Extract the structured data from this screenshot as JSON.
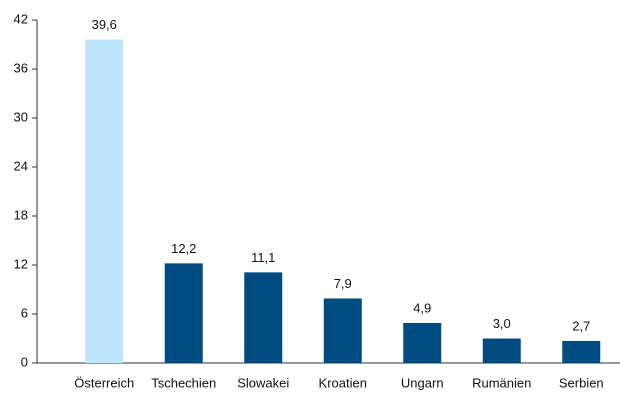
{
  "chart_data": {
    "type": "bar",
    "categories": [
      "Österreich",
      "Tschechien",
      "Slowakei",
      "Kroatien",
      "Ungarn",
      "Rumänien",
      "Serbien"
    ],
    "values": [
      39.6,
      12.2,
      11.1,
      7.9,
      4.9,
      3.0,
      2.7
    ],
    "value_labels": [
      "39,6",
      "12,2",
      "11,1",
      "7,9",
      "4,9",
      "3,0",
      "2,7"
    ],
    "colors": [
      "#bde4f8",
      "#004b7f",
      "#004b7f",
      "#004b7f",
      "#004b7f",
      "#004b7f",
      "#004b7f"
    ],
    "ylim": [
      0,
      42
    ],
    "yticks": [
      0,
      6,
      12,
      18,
      24,
      30,
      36,
      42
    ],
    "grid": false
  }
}
